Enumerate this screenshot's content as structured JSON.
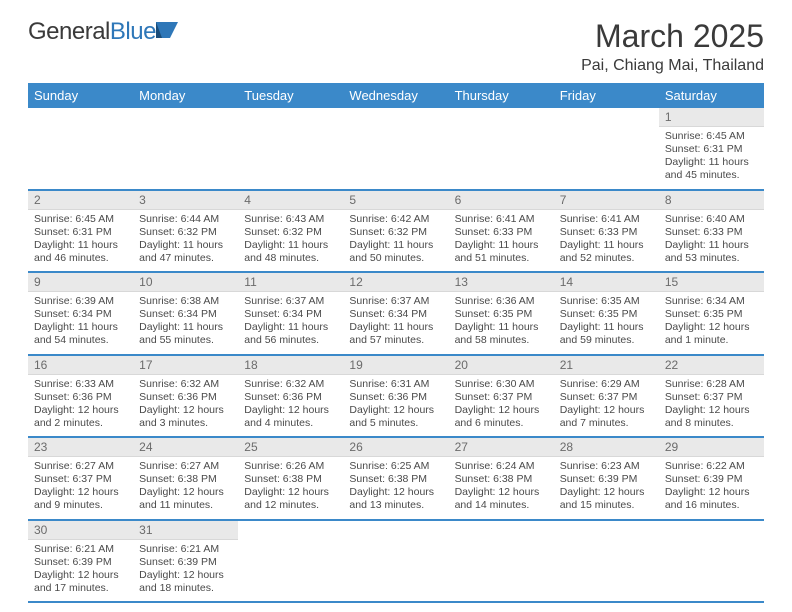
{
  "logo": {
    "general": "General",
    "blue": "Blue"
  },
  "header": {
    "title": "March 2025",
    "location": "Pai, Chiang Mai, Thailand"
  },
  "styling": {
    "header_bg": "#3b89c9",
    "header_fg": "#ffffff",
    "cell_border": "#3b89c9",
    "daynum_bg": "#e9e9e9",
    "daynum_fg": "#6b6b6b",
    "body_fg": "#4a4a4a",
    "page_bg": "#ffffff",
    "title_fontsize": 32,
    "location_fontsize": 16,
    "dow_fontsize": 13,
    "body_fontsize": 10.5
  },
  "calendar": {
    "type": "table",
    "columns": [
      "Sunday",
      "Monday",
      "Tuesday",
      "Wednesday",
      "Thursday",
      "Friday",
      "Saturday"
    ],
    "weeks": [
      [
        null,
        null,
        null,
        null,
        null,
        null,
        {
          "n": "1",
          "sunrise": "Sunrise: 6:45 AM",
          "sunset": "Sunset: 6:31 PM",
          "daylight": "Daylight: 11 hours and 45 minutes."
        }
      ],
      [
        {
          "n": "2",
          "sunrise": "Sunrise: 6:45 AM",
          "sunset": "Sunset: 6:31 PM",
          "daylight": "Daylight: 11 hours and 46 minutes."
        },
        {
          "n": "3",
          "sunrise": "Sunrise: 6:44 AM",
          "sunset": "Sunset: 6:32 PM",
          "daylight": "Daylight: 11 hours and 47 minutes."
        },
        {
          "n": "4",
          "sunrise": "Sunrise: 6:43 AM",
          "sunset": "Sunset: 6:32 PM",
          "daylight": "Daylight: 11 hours and 48 minutes."
        },
        {
          "n": "5",
          "sunrise": "Sunrise: 6:42 AM",
          "sunset": "Sunset: 6:32 PM",
          "daylight": "Daylight: 11 hours and 50 minutes."
        },
        {
          "n": "6",
          "sunrise": "Sunrise: 6:41 AM",
          "sunset": "Sunset: 6:33 PM",
          "daylight": "Daylight: 11 hours and 51 minutes."
        },
        {
          "n": "7",
          "sunrise": "Sunrise: 6:41 AM",
          "sunset": "Sunset: 6:33 PM",
          "daylight": "Daylight: 11 hours and 52 minutes."
        },
        {
          "n": "8",
          "sunrise": "Sunrise: 6:40 AM",
          "sunset": "Sunset: 6:33 PM",
          "daylight": "Daylight: 11 hours and 53 minutes."
        }
      ],
      [
        {
          "n": "9",
          "sunrise": "Sunrise: 6:39 AM",
          "sunset": "Sunset: 6:34 PM",
          "daylight": "Daylight: 11 hours and 54 minutes."
        },
        {
          "n": "10",
          "sunrise": "Sunrise: 6:38 AM",
          "sunset": "Sunset: 6:34 PM",
          "daylight": "Daylight: 11 hours and 55 minutes."
        },
        {
          "n": "11",
          "sunrise": "Sunrise: 6:37 AM",
          "sunset": "Sunset: 6:34 PM",
          "daylight": "Daylight: 11 hours and 56 minutes."
        },
        {
          "n": "12",
          "sunrise": "Sunrise: 6:37 AM",
          "sunset": "Sunset: 6:34 PM",
          "daylight": "Daylight: 11 hours and 57 minutes."
        },
        {
          "n": "13",
          "sunrise": "Sunrise: 6:36 AM",
          "sunset": "Sunset: 6:35 PM",
          "daylight": "Daylight: 11 hours and 58 minutes."
        },
        {
          "n": "14",
          "sunrise": "Sunrise: 6:35 AM",
          "sunset": "Sunset: 6:35 PM",
          "daylight": "Daylight: 11 hours and 59 minutes."
        },
        {
          "n": "15",
          "sunrise": "Sunrise: 6:34 AM",
          "sunset": "Sunset: 6:35 PM",
          "daylight": "Daylight: 12 hours and 1 minute."
        }
      ],
      [
        {
          "n": "16",
          "sunrise": "Sunrise: 6:33 AM",
          "sunset": "Sunset: 6:36 PM",
          "daylight": "Daylight: 12 hours and 2 minutes."
        },
        {
          "n": "17",
          "sunrise": "Sunrise: 6:32 AM",
          "sunset": "Sunset: 6:36 PM",
          "daylight": "Daylight: 12 hours and 3 minutes."
        },
        {
          "n": "18",
          "sunrise": "Sunrise: 6:32 AM",
          "sunset": "Sunset: 6:36 PM",
          "daylight": "Daylight: 12 hours and 4 minutes."
        },
        {
          "n": "19",
          "sunrise": "Sunrise: 6:31 AM",
          "sunset": "Sunset: 6:36 PM",
          "daylight": "Daylight: 12 hours and 5 minutes."
        },
        {
          "n": "20",
          "sunrise": "Sunrise: 6:30 AM",
          "sunset": "Sunset: 6:37 PM",
          "daylight": "Daylight: 12 hours and 6 minutes."
        },
        {
          "n": "21",
          "sunrise": "Sunrise: 6:29 AM",
          "sunset": "Sunset: 6:37 PM",
          "daylight": "Daylight: 12 hours and 7 minutes."
        },
        {
          "n": "22",
          "sunrise": "Sunrise: 6:28 AM",
          "sunset": "Sunset: 6:37 PM",
          "daylight": "Daylight: 12 hours and 8 minutes."
        }
      ],
      [
        {
          "n": "23",
          "sunrise": "Sunrise: 6:27 AM",
          "sunset": "Sunset: 6:37 PM",
          "daylight": "Daylight: 12 hours and 9 minutes."
        },
        {
          "n": "24",
          "sunrise": "Sunrise: 6:27 AM",
          "sunset": "Sunset: 6:38 PM",
          "daylight": "Daylight: 12 hours and 11 minutes."
        },
        {
          "n": "25",
          "sunrise": "Sunrise: 6:26 AM",
          "sunset": "Sunset: 6:38 PM",
          "daylight": "Daylight: 12 hours and 12 minutes."
        },
        {
          "n": "26",
          "sunrise": "Sunrise: 6:25 AM",
          "sunset": "Sunset: 6:38 PM",
          "daylight": "Daylight: 12 hours and 13 minutes."
        },
        {
          "n": "27",
          "sunrise": "Sunrise: 6:24 AM",
          "sunset": "Sunset: 6:38 PM",
          "daylight": "Daylight: 12 hours and 14 minutes."
        },
        {
          "n": "28",
          "sunrise": "Sunrise: 6:23 AM",
          "sunset": "Sunset: 6:39 PM",
          "daylight": "Daylight: 12 hours and 15 minutes."
        },
        {
          "n": "29",
          "sunrise": "Sunrise: 6:22 AM",
          "sunset": "Sunset: 6:39 PM",
          "daylight": "Daylight: 12 hours and 16 minutes."
        }
      ],
      [
        {
          "n": "30",
          "sunrise": "Sunrise: 6:21 AM",
          "sunset": "Sunset: 6:39 PM",
          "daylight": "Daylight: 12 hours and 17 minutes."
        },
        {
          "n": "31",
          "sunrise": "Sunrise: 6:21 AM",
          "sunset": "Sunset: 6:39 PM",
          "daylight": "Daylight: 12 hours and 18 minutes."
        },
        null,
        null,
        null,
        null,
        null
      ]
    ]
  }
}
